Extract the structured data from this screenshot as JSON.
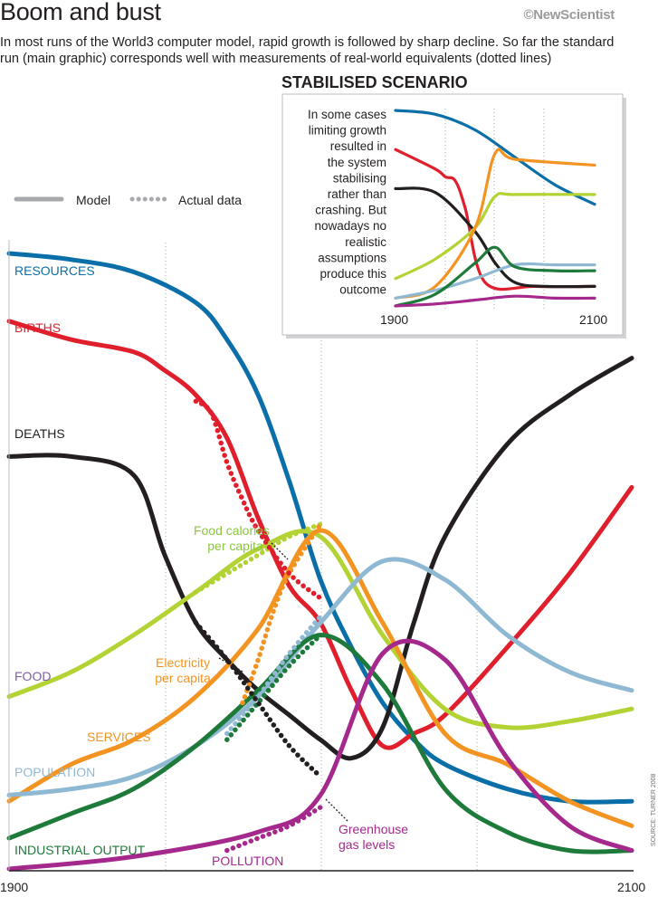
{
  "header": {
    "title": "Boom and bust",
    "brand": "©NewScientist",
    "subtitle": "In most runs of the World3 computer model, rapid growth is followed by sharp decline. So far the standard run (main graphic) corresponds well with measurements of real-world equivalents (dotted lines)"
  },
  "legend": {
    "model_label": "Model",
    "actual_label": "Actual data"
  },
  "source": "SOURCE: TURNER 2008",
  "colors": {
    "resources": "#0a6fa8",
    "births": "#e01f2d",
    "deaths": "#231f20",
    "food": "#b3d335",
    "services": "#f39422",
    "population": "#8fb9d2",
    "industrial_output": "#1e7a3a",
    "pollution": "#a5288d"
  },
  "chart_data": [
    {
      "type": "line",
      "title": "",
      "x_ticks": [
        "1900",
        "2100"
      ],
      "xlim": [
        1900,
        2100
      ],
      "ylim": [
        0,
        100
      ],
      "y_axis_values_shown": false,
      "grid": "vertical dotted",
      "series": [
        {
          "name": "RESOURCES",
          "key": "resources",
          "style": "model",
          "x": [
            1900,
            1920,
            1940,
            1960,
            1970,
            1980,
            1990,
            2000,
            2010,
            2020,
            2030,
            2040,
            2060,
            2080,
            2100
          ],
          "y": [
            100,
            99,
            97,
            92,
            86,
            77,
            63,
            47,
            36,
            27,
            21,
            17,
            13,
            11,
            11
          ]
        },
        {
          "name": "BIRTHS",
          "key": "births",
          "style": "model",
          "x": [
            1900,
            1920,
            1940,
            1950,
            1960,
            1970,
            1980,
            1990,
            2000,
            2010,
            2020,
            2030,
            2040,
            2060,
            2080,
            2100
          ],
          "y": [
            89,
            86,
            84,
            81,
            77,
            70,
            57,
            46,
            40,
            29,
            20,
            22,
            25,
            36,
            48,
            62
          ]
        },
        {
          "name": "DEATHS",
          "key": "deaths",
          "style": "model",
          "x": [
            1900,
            1920,
            1940,
            1950,
            1960,
            1970,
            1980,
            1990,
            2000,
            2010,
            2020,
            2030,
            2040,
            2060,
            2080,
            2100
          ],
          "y": [
            67,
            67,
            64,
            51,
            40,
            34,
            29,
            25,
            21,
            18,
            23,
            40,
            54,
            69,
            77,
            83
          ]
        },
        {
          "name": "FOOD",
          "key": "food",
          "style": "model",
          "x": [
            1900,
            1920,
            1940,
            1960,
            1980,
            2000,
            2020,
            2040,
            2060,
            2080,
            2100
          ],
          "y": [
            28,
            32,
            38,
            45,
            52,
            54,
            38,
            26,
            23,
            24,
            26
          ]
        },
        {
          "name": "SERVICES",
          "key": "services",
          "style": "model",
          "x": [
            1900,
            1920,
            1940,
            1960,
            1980,
            2000,
            2020,
            2040,
            2060,
            2080,
            2100
          ],
          "y": [
            11,
            17,
            21,
            28,
            39,
            55,
            40,
            22,
            17,
            11,
            7
          ]
        },
        {
          "name": "POPULATION",
          "key": "population",
          "style": "model",
          "x": [
            1900,
            1920,
            1940,
            1960,
            1980,
            2000,
            2020,
            2040,
            2060,
            2080,
            2100
          ],
          "y": [
            12,
            13,
            15,
            20,
            28,
            40,
            50,
            47,
            38,
            32,
            29
          ]
        },
        {
          "name": "INDUSTRIAL OUTPUT",
          "key": "industrial_output",
          "style": "model",
          "x": [
            1900,
            1920,
            1940,
            1960,
            1980,
            2000,
            2020,
            2040,
            2060,
            2080,
            2100
          ],
          "y": [
            5,
            9,
            13,
            20,
            29,
            38,
            30,
            13,
            6,
            3,
            3
          ]
        },
        {
          "name": "POLLUTION",
          "key": "pollution",
          "style": "model",
          "x": [
            1900,
            1940,
            1980,
            2000,
            2020,
            2040,
            2060,
            2080,
            2100
          ],
          "y": [
            0,
            2,
            6,
            12,
            35,
            34,
            18,
            7,
            3
          ]
        },
        {
          "name": "Food calories per capita",
          "key": "food",
          "style": "actual",
          "x": [
            1960,
            1970,
            1980,
            1990,
            2000
          ],
          "y": [
            45,
            48,
            51,
            54,
            56
          ]
        },
        {
          "name": "Electricity per capita",
          "key": "services",
          "style": "actual",
          "x": [
            1975,
            1980,
            1985,
            1990,
            2000
          ],
          "y": [
            27,
            34,
            42,
            48,
            56
          ]
        },
        {
          "name": "",
          "key": "population",
          "style": "actual",
          "x": [
            1970,
            1980,
            1990,
            2000
          ],
          "y": [
            22,
            28,
            35,
            41
          ]
        },
        {
          "name": "",
          "key": "industrial_output",
          "style": "actual",
          "x": [
            1970,
            1980,
            1990,
            2000
          ],
          "y": [
            21,
            27,
            33,
            38
          ]
        },
        {
          "name": "Greenhouse gas levels",
          "key": "pollution",
          "style": "actual",
          "x": [
            1970,
            1980,
            1990,
            2000
          ],
          "y": [
            3,
            5,
            7,
            10
          ]
        },
        {
          "name": "",
          "key": "births",
          "style": "actual",
          "x": [
            1960,
            1965,
            1970,
            1975,
            1980,
            1990,
            2000
          ],
          "y": [
            76,
            74,
            66,
            60,
            55,
            48,
            44
          ]
        },
        {
          "name": "",
          "key": "deaths",
          "style": "actual",
          "x": [
            1960,
            1970,
            1980,
            1990,
            2000
          ],
          "y": [
            40,
            34,
            27,
            20,
            15
          ]
        }
      ]
    },
    {
      "type": "line",
      "title": "STABILISED SCENARIO",
      "note": "In some cases limiting growth resulted in the system stabilising rather than crashing. But nowadays no realistic assumptions produce this outcome",
      "x_ticks": [
        "1900",
        "2100"
      ],
      "xlim": [
        1900,
        2100
      ],
      "ylim": [
        0,
        100
      ],
      "y_axis_values_shown": false,
      "series": [
        {
          "key": "resources",
          "x": [
            1900,
            1940,
            1980,
            2020,
            2060,
            2100
          ],
          "y": [
            100,
            98,
            90,
            76,
            62,
            52
          ]
        },
        {
          "key": "births",
          "x": [
            1900,
            1940,
            1950,
            1960,
            1970,
            1990,
            2040,
            2100
          ],
          "y": [
            80,
            70,
            66,
            64,
            50,
            12,
            10,
            10
          ]
        },
        {
          "key": "deaths",
          "x": [
            1900,
            1940,
            1980,
            2000,
            2020,
            2050,
            2100
          ],
          "y": [
            60,
            58,
            38,
            22,
            12,
            10,
            10
          ]
        },
        {
          "key": "food",
          "x": [
            1900,
            1940,
            1980,
            2000,
            2020,
            2100
          ],
          "y": [
            14,
            24,
            40,
            56,
            57,
            57
          ]
        },
        {
          "key": "services",
          "x": [
            1900,
            1940,
            1980,
            2000,
            2020,
            2100
          ],
          "y": [
            4,
            10,
            40,
            78,
            75,
            72
          ]
        },
        {
          "key": "population",
          "x": [
            1900,
            1940,
            1980,
            2020,
            2060,
            2100
          ],
          "y": [
            4,
            8,
            14,
            21,
            21,
            21
          ]
        },
        {
          "key": "industrial_output",
          "x": [
            1900,
            1940,
            1980,
            2000,
            2020,
            2060,
            2100
          ],
          "y": [
            0,
            6,
            22,
            30,
            20,
            18,
            18
          ]
        },
        {
          "key": "pollution",
          "x": [
            1900,
            1940,
            1980,
            2020,
            2060,
            2100
          ],
          "y": [
            0,
            1,
            3,
            5,
            4,
            4
          ]
        }
      ]
    }
  ]
}
